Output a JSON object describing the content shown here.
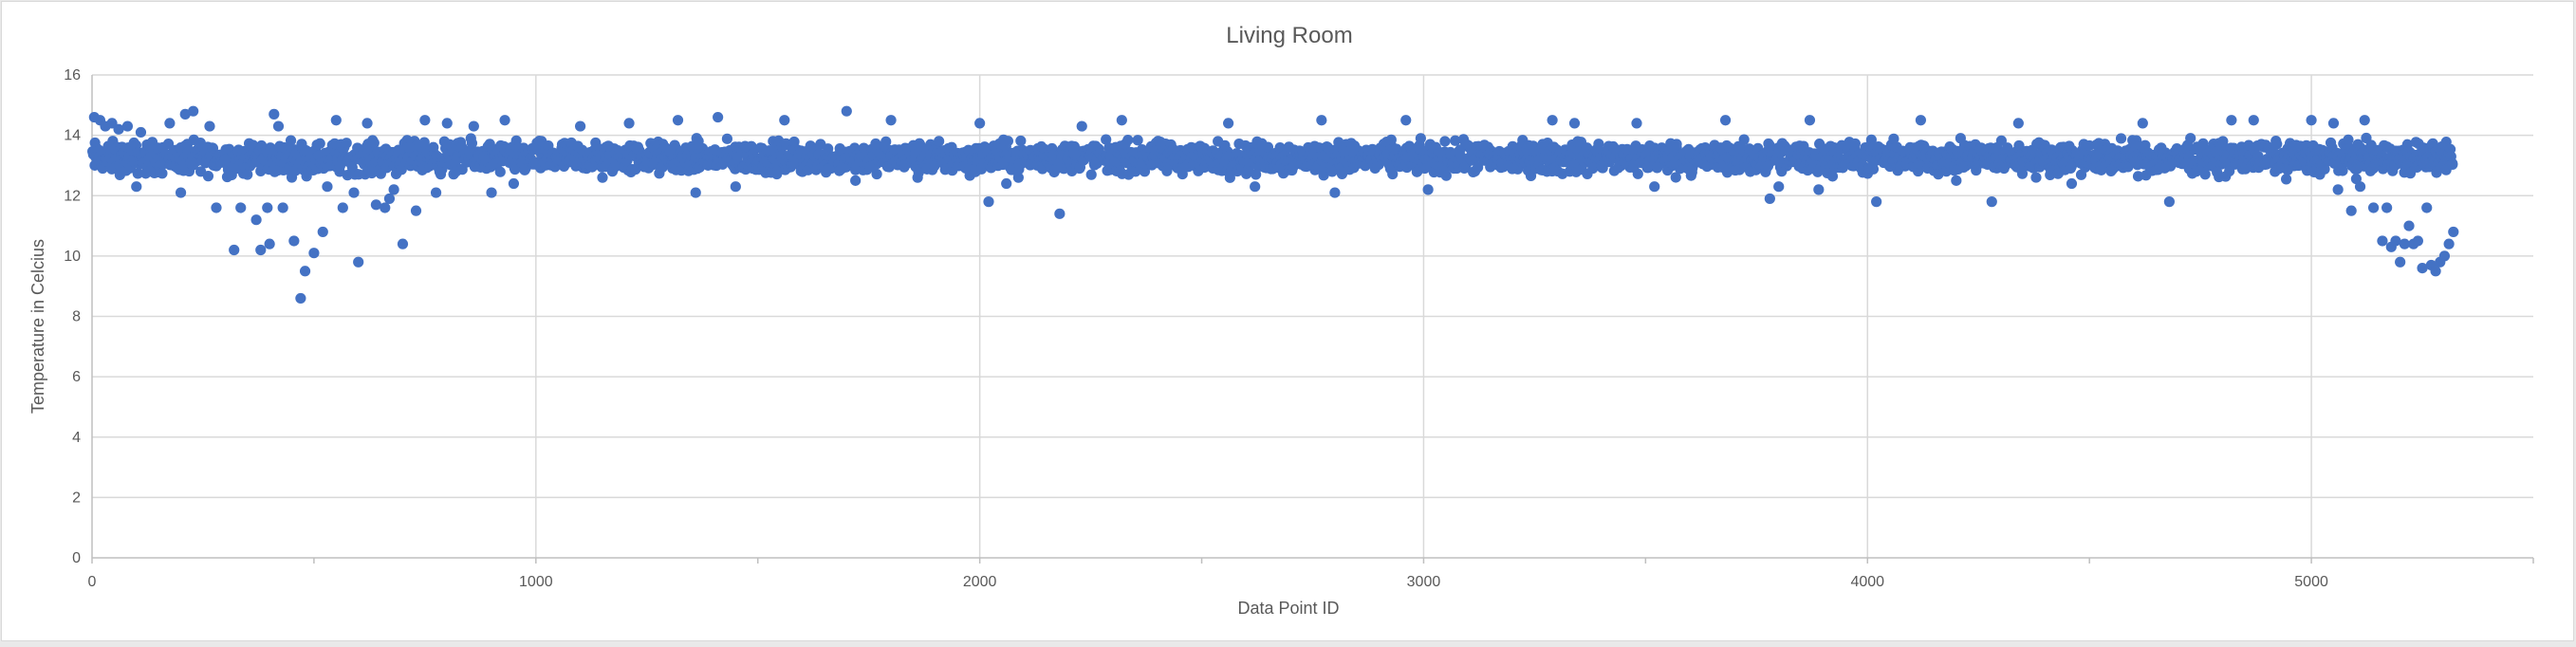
{
  "chart_data": {
    "type": "scatter",
    "title": "Living Room",
    "xlabel": "Data Point ID",
    "ylabel": "Temperature in Celcius",
    "xlim": [
      0,
      5500
    ],
    "ylim": [
      0,
      16
    ],
    "xticks": [
      0,
      1000,
      2000,
      3000,
      4000,
      5000
    ],
    "yticks": [
      0,
      2,
      4,
      6,
      8,
      10,
      12,
      14,
      16
    ],
    "grid": true,
    "legend": "none",
    "marker_color": "#4472C4",
    "series": [
      {
        "name": "Temperature",
        "x_range": [
          1,
          5320
        ],
        "typical_band": [
          12.5,
          14.0
        ],
        "points": [
          {
            "x": 5,
            "y": 14.6
          },
          {
            "x": 18,
            "y": 14.5
          },
          {
            "x": 30,
            "y": 14.3
          },
          {
            "x": 45,
            "y": 14.4
          },
          {
            "x": 60,
            "y": 14.2
          },
          {
            "x": 80,
            "y": 14.3
          },
          {
            "x": 110,
            "y": 14.1
          },
          {
            "x": 100,
            "y": 12.3
          },
          {
            "x": 130,
            "y": 12.8
          },
          {
            "x": 160,
            "y": 13.6
          },
          {
            "x": 175,
            "y": 14.4
          },
          {
            "x": 200,
            "y": 12.1
          },
          {
            "x": 210,
            "y": 14.7
          },
          {
            "x": 228,
            "y": 14.8
          },
          {
            "x": 245,
            "y": 12.8
          },
          {
            "x": 265,
            "y": 14.3
          },
          {
            "x": 280,
            "y": 11.6
          },
          {
            "x": 300,
            "y": 13.2
          },
          {
            "x": 320,
            "y": 10.2
          },
          {
            "x": 335,
            "y": 11.6
          },
          {
            "x": 350,
            "y": 12.7
          },
          {
            "x": 370,
            "y": 11.2
          },
          {
            "x": 380,
            "y": 10.2
          },
          {
            "x": 395,
            "y": 11.6
          },
          {
            "x": 400,
            "y": 10.4
          },
          {
            "x": 410,
            "y": 14.7
          },
          {
            "x": 420,
            "y": 14.3
          },
          {
            "x": 430,
            "y": 11.6
          },
          {
            "x": 455,
            "y": 10.5
          },
          {
            "x": 470,
            "y": 8.6
          },
          {
            "x": 480,
            "y": 9.5
          },
          {
            "x": 500,
            "y": 10.1
          },
          {
            "x": 520,
            "y": 10.8
          },
          {
            "x": 530,
            "y": 12.3
          },
          {
            "x": 550,
            "y": 14.5
          },
          {
            "x": 565,
            "y": 11.6
          },
          {
            "x": 590,
            "y": 12.1
          },
          {
            "x": 600,
            "y": 9.8
          },
          {
            "x": 620,
            "y": 14.4
          },
          {
            "x": 640,
            "y": 11.7
          },
          {
            "x": 660,
            "y": 11.6
          },
          {
            "x": 670,
            "y": 11.9
          },
          {
            "x": 680,
            "y": 12.2
          },
          {
            "x": 700,
            "y": 10.4
          },
          {
            "x": 715,
            "y": 13.6
          },
          {
            "x": 730,
            "y": 11.5
          },
          {
            "x": 750,
            "y": 14.5
          },
          {
            "x": 775,
            "y": 12.1
          },
          {
            "x": 800,
            "y": 14.4
          },
          {
            "x": 820,
            "y": 12.8
          },
          {
            "x": 860,
            "y": 14.3
          },
          {
            "x": 900,
            "y": 12.1
          },
          {
            "x": 930,
            "y": 14.5
          },
          {
            "x": 950,
            "y": 12.4
          },
          {
            "x": 1100,
            "y": 14.3
          },
          {
            "x": 1150,
            "y": 12.6
          },
          {
            "x": 1210,
            "y": 14.4
          },
          {
            "x": 1320,
            "y": 14.5
          },
          {
            "x": 1360,
            "y": 12.1
          },
          {
            "x": 1410,
            "y": 14.6
          },
          {
            "x": 1450,
            "y": 12.3
          },
          {
            "x": 1560,
            "y": 14.5
          },
          {
            "x": 1700,
            "y": 14.8
          },
          {
            "x": 1720,
            "y": 12.5
          },
          {
            "x": 1800,
            "y": 14.5
          },
          {
            "x": 1860,
            "y": 12.6
          },
          {
            "x": 2000,
            "y": 14.4
          },
          {
            "x": 2020,
            "y": 11.8
          },
          {
            "x": 2060,
            "y": 12.4
          },
          {
            "x": 2180,
            "y": 11.4
          },
          {
            "x": 2230,
            "y": 14.3
          },
          {
            "x": 2320,
            "y": 14.5
          },
          {
            "x": 2560,
            "y": 14.4
          },
          {
            "x": 2620,
            "y": 12.3
          },
          {
            "x": 2770,
            "y": 14.5
          },
          {
            "x": 2800,
            "y": 12.1
          },
          {
            "x": 2960,
            "y": 14.5
          },
          {
            "x": 3010,
            "y": 12.2
          },
          {
            "x": 3290,
            "y": 14.5
          },
          {
            "x": 3340,
            "y": 14.4
          },
          {
            "x": 3480,
            "y": 14.4
          },
          {
            "x": 3520,
            "y": 12.3
          },
          {
            "x": 3680,
            "y": 14.5
          },
          {
            "x": 3780,
            "y": 11.9
          },
          {
            "x": 3800,
            "y": 12.3
          },
          {
            "x": 3870,
            "y": 14.5
          },
          {
            "x": 3890,
            "y": 12.2
          },
          {
            "x": 4020,
            "y": 11.8
          },
          {
            "x": 4120,
            "y": 14.5
          },
          {
            "x": 4200,
            "y": 12.5
          },
          {
            "x": 4280,
            "y": 11.8
          },
          {
            "x": 4340,
            "y": 14.4
          },
          {
            "x": 4460,
            "y": 12.4
          },
          {
            "x": 4620,
            "y": 14.4
          },
          {
            "x": 4680,
            "y": 11.8
          },
          {
            "x": 4820,
            "y": 14.5
          },
          {
            "x": 4870,
            "y": 14.5
          },
          {
            "x": 5000,
            "y": 14.5
          },
          {
            "x": 5050,
            "y": 14.4
          },
          {
            "x": 5060,
            "y": 12.2
          },
          {
            "x": 5090,
            "y": 11.5
          },
          {
            "x": 5110,
            "y": 12.3
          },
          {
            "x": 5120,
            "y": 14.5
          },
          {
            "x": 5140,
            "y": 11.6
          },
          {
            "x": 5160,
            "y": 10.5
          },
          {
            "x": 5170,
            "y": 11.6
          },
          {
            "x": 5180,
            "y": 10.3
          },
          {
            "x": 5190,
            "y": 10.5
          },
          {
            "x": 5200,
            "y": 9.8
          },
          {
            "x": 5210,
            "y": 10.4
          },
          {
            "x": 5220,
            "y": 11.0
          },
          {
            "x": 5230,
            "y": 10.4
          },
          {
            "x": 5240,
            "y": 10.5
          },
          {
            "x": 5250,
            "y": 9.6
          },
          {
            "x": 5260,
            "y": 11.6
          },
          {
            "x": 5270,
            "y": 9.7
          },
          {
            "x": 5280,
            "y": 9.5
          },
          {
            "x": 5290,
            "y": 9.8
          },
          {
            "x": 5300,
            "y": 10.0
          },
          {
            "x": 5310,
            "y": 10.4
          },
          {
            "x": 5320,
            "y": 10.8
          }
        ]
      }
    ]
  }
}
